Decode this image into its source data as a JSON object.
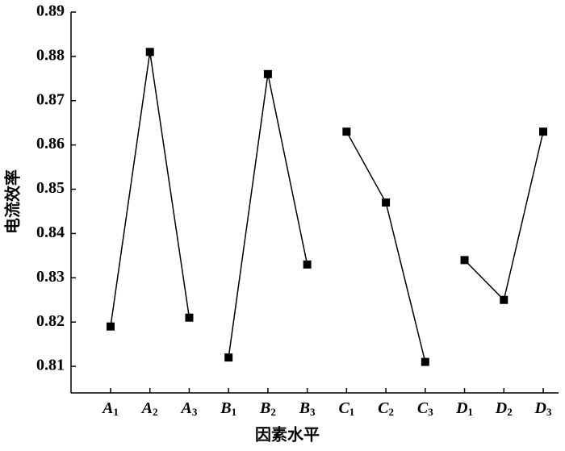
{
  "chart_data": {
    "type": "line",
    "x_label": "因素水平",
    "y_label": "电流效率",
    "categories": [
      "A1",
      "A2",
      "A3",
      "B1",
      "B2",
      "B3",
      "C1",
      "C2",
      "C3",
      "D1",
      "D2",
      "D3"
    ],
    "series": [
      {
        "color": "#000000",
        "values": [
          0.819,
          0.881,
          0.821,
          null,
          null,
          null,
          null,
          null,
          null,
          null,
          null,
          null
        ]
      },
      {
        "color": "#000000",
        "values": [
          null,
          null,
          null,
          0.812,
          0.876,
          0.833,
          null,
          null,
          null,
          null,
          null,
          null
        ]
      },
      {
        "color": "#000000",
        "values": [
          null,
          null,
          null,
          null,
          null,
          null,
          0.863,
          0.847,
          0.811,
          null,
          null,
          null
        ]
      },
      {
        "color": "#000000",
        "values": [
          null,
          null,
          null,
          null,
          null,
          null,
          null,
          null,
          null,
          0.834,
          0.825,
          0.863
        ]
      }
    ],
    "ylim": [
      0.804,
      0.89
    ],
    "yticks": [
      0.81,
      0.82,
      0.83,
      0.84,
      0.85,
      0.86,
      0.87,
      0.88,
      0.89
    ],
    "grid": false
  }
}
